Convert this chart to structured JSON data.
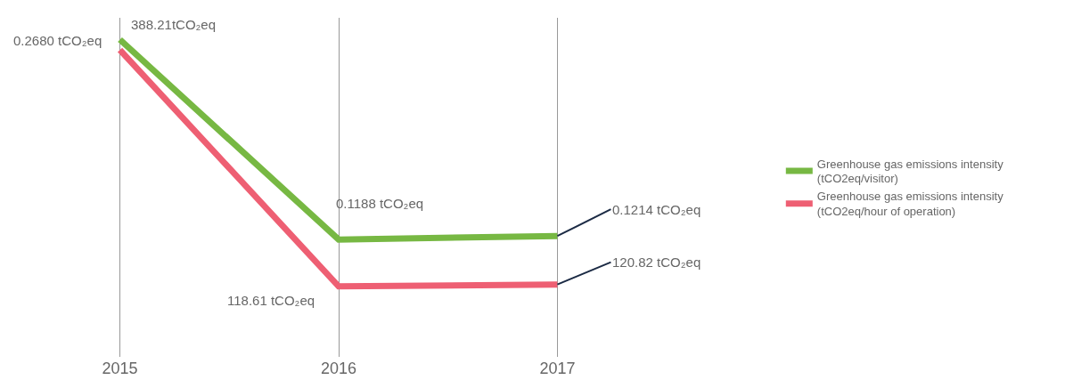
{
  "chart_data": {
    "type": "line",
    "categories": [
      "2015",
      "2016",
      "2017"
    ],
    "series": [
      {
        "name": "Greenhouse gas emissions intensity\n(tCO2eq/visitor)",
        "color": "#77b843",
        "values": [
          0.268,
          0.1188,
          0.1214
        ],
        "value_labels": [
          "0.2680 tCO₂eq",
          "0.1188 tCO₂eq",
          "0.1214 tCO₂eq"
        ]
      },
      {
        "name": "Greenhouse gas emissions intensity\n(tCO2eq/hour of operation)",
        "color": "#ee5f73",
        "values": [
          388.21,
          118.61,
          120.82
        ],
        "value_labels": [
          "388.21tCO₂eq",
          "118.61 tCO₂eq",
          "120.82 tCO₂eq"
        ],
        "axis": "y2"
      }
    ],
    "tick_labels": "x",
    "grid": "x",
    "legend": "right",
    "marker": "none",
    "line_style": "solid"
  }
}
